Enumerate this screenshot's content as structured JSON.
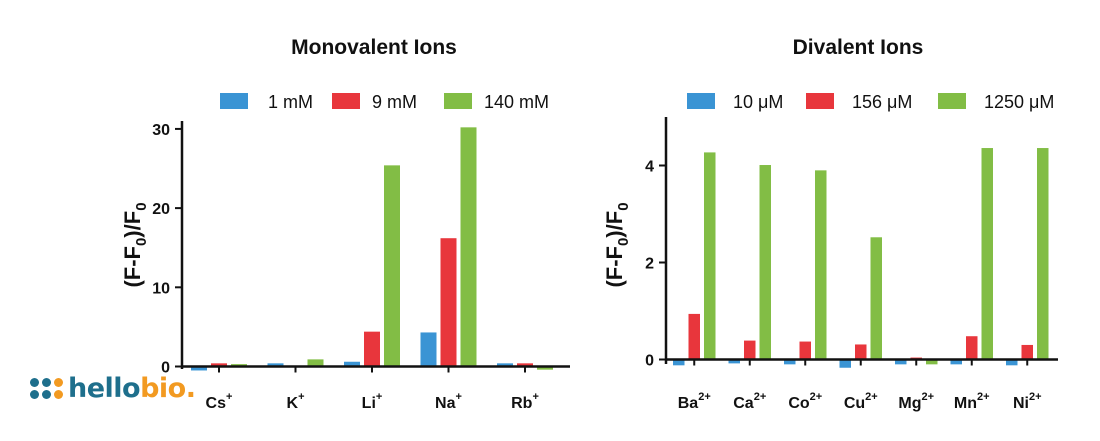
{
  "chart_data": [
    {
      "type": "bar",
      "title": "Monovalent Ions",
      "ylabel": "(F-F0)/F0",
      "ylabel_parts": [
        "(F-F",
        "0",
        ")/F",
        "0"
      ],
      "ylim": [
        -1,
        31
      ],
      "yticks": [
        0,
        10,
        20,
        30
      ],
      "legend_position": "top",
      "categories": [
        {
          "base": "Cs",
          "sup": "+"
        },
        {
          "base": "K",
          "sup": "+"
        },
        {
          "base": "Li",
          "sup": "+"
        },
        {
          "base": "Na",
          "sup": "+"
        },
        {
          "base": "Rb",
          "sup": "+"
        }
      ],
      "series": [
        {
          "name": "1 mM",
          "color": "#3a94d4",
          "values": [
            -0.5,
            0.4,
            0.6,
            4.3,
            0.4
          ]
        },
        {
          "name": "9 mM",
          "color": "#e8363c",
          "values": [
            0.4,
            0.1,
            4.4,
            16.2,
            0.4
          ]
        },
        {
          "name": "140 mM",
          "color": "#82bd45",
          "values": [
            0.3,
            0.9,
            25.4,
            30.2,
            -0.4
          ]
        }
      ]
    },
    {
      "type": "bar",
      "title": "Divalent Ions",
      "ylabel": "(F-F0)/F0",
      "ylabel_parts": [
        "(F-F",
        "0",
        ")/F",
        "0"
      ],
      "ylim": [
        -0.2,
        5
      ],
      "yticks": [
        0,
        2,
        4
      ],
      "legend_position": "top",
      "categories": [
        {
          "base": "Ba",
          "sup": "2+"
        },
        {
          "base": "Ca",
          "sup": "2+"
        },
        {
          "base": "Co",
          "sup": "2+"
        },
        {
          "base": "Cu",
          "sup": "2+"
        },
        {
          "base": "Mg",
          "sup": "2+"
        },
        {
          "base": "Mn",
          "sup": "2+"
        },
        {
          "base": "Ni",
          "sup": "2+"
        }
      ],
      "series": [
        {
          "name": "10 μM",
          "color": "#3a94d4",
          "values": [
            -0.12,
            -0.08,
            -0.1,
            -0.17,
            -0.1,
            -0.1,
            -0.12
          ]
        },
        {
          "name": "156 μM",
          "color": "#e8363c",
          "values": [
            0.94,
            0.39,
            0.37,
            0.31,
            0.04,
            0.48,
            0.3
          ]
        },
        {
          "name": "1250 μM",
          "color": "#82bd45",
          "values": [
            4.27,
            4.01,
            3.9,
            2.52,
            -0.1,
            4.36,
            4.36
          ]
        }
      ]
    }
  ],
  "logo": {
    "text_part1": "hello",
    "text_part2": "bio.",
    "color_primary": "#1e6f8c",
    "color_accent": "#f29a21"
  }
}
